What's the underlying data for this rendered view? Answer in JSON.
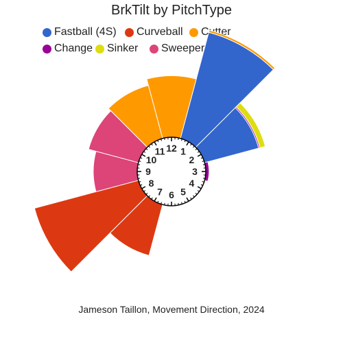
{
  "title": "BrkTilt by PitchType",
  "caption": "Jameson Taillon, Movement Direction, 2024",
  "legend": [
    {
      "name": "Fastball (4S)",
      "color": "#3366CC"
    },
    {
      "name": "Curveball",
      "color": "#DC3912"
    },
    {
      "name": "Cutter",
      "color": "#FF9900"
    },
    {
      "name": "Change",
      "color": "#990099"
    },
    {
      "name": "Sinker",
      "color": "#DDDD11"
    },
    {
      "name": "Sweeper",
      "color": "#DD4477"
    }
  ],
  "chart_data": {
    "type": "polar-stacked-bar",
    "title": "BrkTilt by PitchType",
    "angular_axis": "clock",
    "bin_width_hours": 1,
    "clock_labels": [
      "12",
      "1",
      "2",
      "3",
      "4",
      "5",
      "6",
      "7",
      "8",
      "9",
      "10",
      "11"
    ],
    "radial_max": 1.0,
    "series": [
      {
        "name": "Fastball (4S)",
        "color": "#3366CC",
        "values": [
          {
            "clock": 1,
            "value": 1.0
          },
          {
            "clock": 2,
            "value": 0.51
          }
        ]
      },
      {
        "name": "Curveball",
        "color": "#DC3912",
        "values": [
          {
            "clock": 7,
            "value": 0.48
          },
          {
            "clock": 8,
            "value": 0.98
          }
        ]
      },
      {
        "name": "Cutter",
        "color": "#FF9900",
        "values": [
          {
            "clock": 1,
            "value": 0.02
          },
          {
            "clock": 11,
            "value": 0.5
          },
          {
            "clock": 12,
            "value": 0.56
          }
        ]
      },
      {
        "name": "Change",
        "color": "#990099",
        "values": [
          {
            "clock": 2,
            "value": 0.012
          },
          {
            "clock": 3,
            "value": 0.03
          }
        ]
      },
      {
        "name": "Sinker",
        "color": "#DDDD11",
        "values": [
          {
            "clock": 2,
            "value": 0.05
          }
        ]
      },
      {
        "name": "Sweeper",
        "color": "#DD4477",
        "values": [
          {
            "clock": 9,
            "value": 0.4
          },
          {
            "clock": 10,
            "value": 0.47
          }
        ]
      }
    ],
    "legend_position": "top"
  }
}
